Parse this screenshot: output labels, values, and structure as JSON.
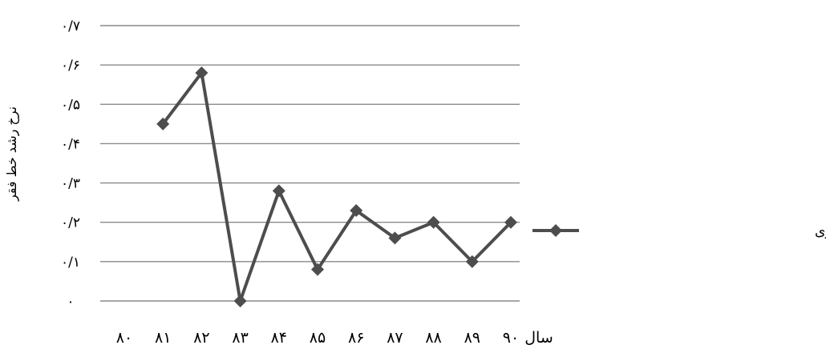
{
  "chart_data": {
    "type": "line",
    "title": "",
    "ylabel": "نرخ رشد خط فقر",
    "xlabel": "سال",
    "ylim": [
      0,
      0.7
    ],
    "yticks": [
      0,
      0.1,
      0.2,
      0.3,
      0.4,
      0.5,
      0.6,
      0.7
    ],
    "ytick_labels": [
      "۰",
      "۰/۱",
      "۰/۲",
      "۰/۳",
      "۰/۴",
      "۰/۵",
      "۰/۶",
      "۰/۷"
    ],
    "categories": [
      "۸۰",
      "۸۱",
      "۸۲",
      "۸۳",
      "۸۴",
      "۸۵",
      "۸۶",
      "۸۷",
      "۸۸",
      "۸۹",
      "۹۰"
    ],
    "grid": "horizontal",
    "legend_position": "right",
    "series": [
      {
        "name": "رشد خط فقر سالانه شهری",
        "color": "#4d4d4d",
        "values": [
          null,
          0.45,
          0.58,
          0.0,
          0.28,
          0.08,
          0.23,
          0.16,
          0.2,
          0.1,
          0.2
        ]
      }
    ]
  }
}
